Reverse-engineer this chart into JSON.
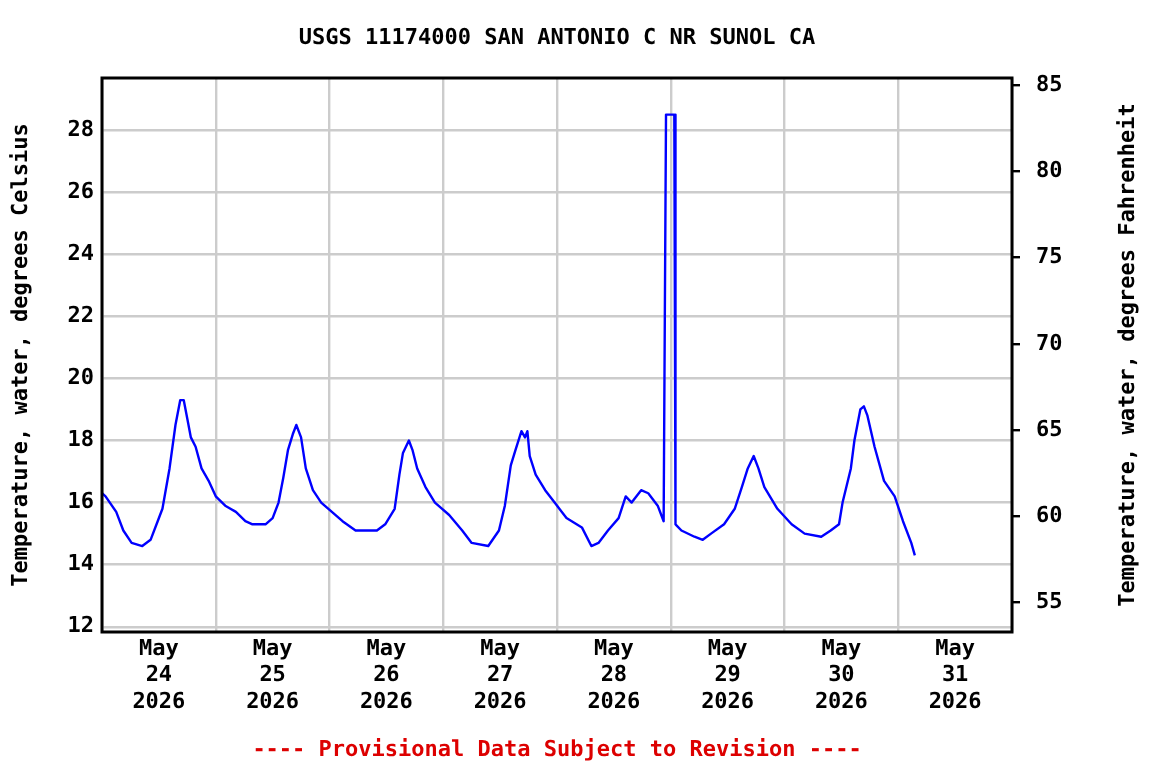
{
  "chart_data": {
    "type": "line",
    "title": "USGS 11174000 SAN ANTONIO C NR SUNOL CA",
    "ylabel": "Temperature, water, degrees Celsius",
    "y2label": "Temperature, water, degrees Fahrenheit",
    "annotations": [
      "---- Provisional Data Subject to Revision ----"
    ],
    "xlim": [
      "2026-05-24",
      "2026-06-01"
    ],
    "xticks": [
      {
        "value": "2026-05-24",
        "label": null
      },
      {
        "value": "2026-05-24T12:00",
        "label": "May 24 2026"
      },
      {
        "value": "2026-05-25",
        "label": null
      },
      {
        "value": "2026-05-25T12:00",
        "label": "May 25 2026"
      },
      {
        "value": "2026-05-26",
        "label": null
      },
      {
        "value": "2026-05-26T12:00",
        "label": "May 26 2026"
      },
      {
        "value": "2026-05-27",
        "label": null
      },
      {
        "value": "2026-05-27T12:00",
        "label": "May 27 2026"
      },
      {
        "value": "2026-05-28",
        "label": null
      },
      {
        "value": "2026-05-28T12:00",
        "label": "May 28 2026"
      },
      {
        "value": "2026-05-29",
        "label": null
      },
      {
        "value": "2026-05-29T12:00",
        "label": "May 29 2026"
      },
      {
        "value": "2026-05-30",
        "label": null
      },
      {
        "value": "2026-05-30T12:00",
        "label": "May 30 2026"
      },
      {
        "value": "2026-05-31",
        "label": null
      },
      {
        "value": "2026-05-31T12:00",
        "label": "May 31 2026"
      },
      {
        "value": "2026-06-01",
        "label": null
      }
    ],
    "ylim": [
      11.83,
      29.68
    ],
    "yticks": [
      12,
      14,
      16,
      18,
      20,
      22,
      24,
      26,
      28
    ],
    "y2lim": [
      53.3,
      85.4
    ],
    "y2ticks": [
      55,
      60,
      65,
      70,
      75,
      80,
      85
    ],
    "grid": true,
    "legend": false,
    "marker": "none",
    "line_style": "solid",
    "series": [
      {
        "color": "#0000ff",
        "x": [
          "2026-05-24T00:00",
          "2026-05-24T00:45",
          "2026-05-24T03:00",
          "2026-05-24T04:30",
          "2026-05-24T06:15",
          "2026-05-24T08:30",
          "2026-05-24T10:15",
          "2026-05-24T11:45",
          "2026-05-24T12:45",
          "2026-05-24T14:15",
          "2026-05-24T15:30",
          "2026-05-24T16:30",
          "2026-05-24T17:15",
          "2026-05-24T18:00",
          "2026-05-24T18:45",
          "2026-05-24T19:45",
          "2026-05-24T21:00",
          "2026-05-24T22:30",
          "2026-05-25T00:00",
          "2026-05-25T02:00",
          "2026-05-25T04:15",
          "2026-05-25T06:15",
          "2026-05-25T07:45",
          "2026-05-25T10:30",
          "2026-05-25T12:00",
          "2026-05-25T13:15",
          "2026-05-25T14:15",
          "2026-05-25T15:15",
          "2026-05-25T16:15",
          "2026-05-25T17:00",
          "2026-05-25T18:00",
          "2026-05-25T19:00",
          "2026-05-25T20:30",
          "2026-05-25T22:15",
          "2026-05-26T00:30",
          "2026-05-26T02:45",
          "2026-05-26T05:30",
          "2026-05-26T08:30",
          "2026-05-26T10:00",
          "2026-05-26T11:45",
          "2026-05-26T13:45",
          "2026-05-26T14:45",
          "2026-05-26T15:30",
          "2026-05-26T16:45",
          "2026-05-26T17:30",
          "2026-05-26T18:30",
          "2026-05-26T20:15",
          "2026-05-26T22:15",
          "2026-05-27T01:15",
          "2026-05-27T04:00",
          "2026-05-27T06:00",
          "2026-05-27T09:30",
          "2026-05-27T11:45",
          "2026-05-27T13:00",
          "2026-05-27T14:15",
          "2026-05-27T15:15",
          "2026-05-27T16:30",
          "2026-05-27T17:15",
          "2026-05-27T17:45",
          "2026-05-27T18:15",
          "2026-05-27T19:30",
          "2026-05-27T21:30",
          "2026-05-27T23:30",
          "2026-05-28T02:00",
          "2026-05-28T05:15",
          "2026-05-28T07:15",
          "2026-05-28T08:45",
          "2026-05-28T10:45",
          "2026-05-28T13:00",
          "2026-05-28T14:30",
          "2026-05-28T15:45",
          "2026-05-28T17:45",
          "2026-05-28T19:15",
          "2026-05-28T21:15",
          "2026-05-28T22:30",
          "2026-05-28T22:45",
          "2026-05-28T23:00",
          "2026-05-29T00:45",
          "2026-05-29T01:00",
          "2026-05-29T02:15",
          "2026-05-29T05:00",
          "2026-05-29T06:45",
          "2026-05-29T08:30",
          "2026-05-29T11:15",
          "2026-05-29T13:30",
          "2026-05-29T15:00",
          "2026-05-29T16:15",
          "2026-05-29T17:30",
          "2026-05-29T18:30",
          "2026-05-29T19:45",
          "2026-05-29T22:30",
          "2026-05-30T01:30",
          "2026-05-30T04:15",
          "2026-05-30T07:45",
          "2026-05-30T09:45",
          "2026-05-30T11:30",
          "2026-05-30T12:15",
          "2026-05-30T14:00",
          "2026-05-30T14:45",
          "2026-05-30T16:00",
          "2026-05-30T16:45",
          "2026-05-30T17:30",
          "2026-05-30T19:00",
          "2026-05-30T21:00",
          "2026-05-30T23:15",
          "2026-05-31T01:00",
          "2026-05-31T02:45",
          "2026-05-31T03:30"
        ],
        "values": [
          16.3,
          16.2,
          15.7,
          15.1,
          14.7,
          14.6,
          14.8,
          15.4,
          15.8,
          17.1,
          18.5,
          19.3,
          19.3,
          18.7,
          18.1,
          17.8,
          17.1,
          16.7,
          16.2,
          15.9,
          15.7,
          15.4,
          15.3,
          15.3,
          15.5,
          16.0,
          16.8,
          17.7,
          18.2,
          18.5,
          18.1,
          17.1,
          16.4,
          16.0,
          15.7,
          15.4,
          15.1,
          15.1,
          15.1,
          15.3,
          15.8,
          16.9,
          17.6,
          18.0,
          17.7,
          17.1,
          16.5,
          16.0,
          15.6,
          15.1,
          14.7,
          14.6,
          15.1,
          15.9,
          17.2,
          17.7,
          18.3,
          18.1,
          18.3,
          17.5,
          16.9,
          16.4,
          16.0,
          15.5,
          15.2,
          14.6,
          14.7,
          15.1,
          15.5,
          16.2,
          16.0,
          16.4,
          16.3,
          15.9,
          15.4,
          22.0,
          28.5,
          28.5,
          15.3,
          15.1,
          14.9,
          14.8,
          15.0,
          15.3,
          15.8,
          16.5,
          17.1,
          17.5,
          17.1,
          16.5,
          15.8,
          15.3,
          15.0,
          14.9,
          15.1,
          15.3,
          16.0,
          17.1,
          18.0,
          19.0,
          19.1,
          18.8,
          17.8,
          16.7,
          16.2,
          15.4,
          14.7,
          14.3
        ]
      }
    ]
  }
}
